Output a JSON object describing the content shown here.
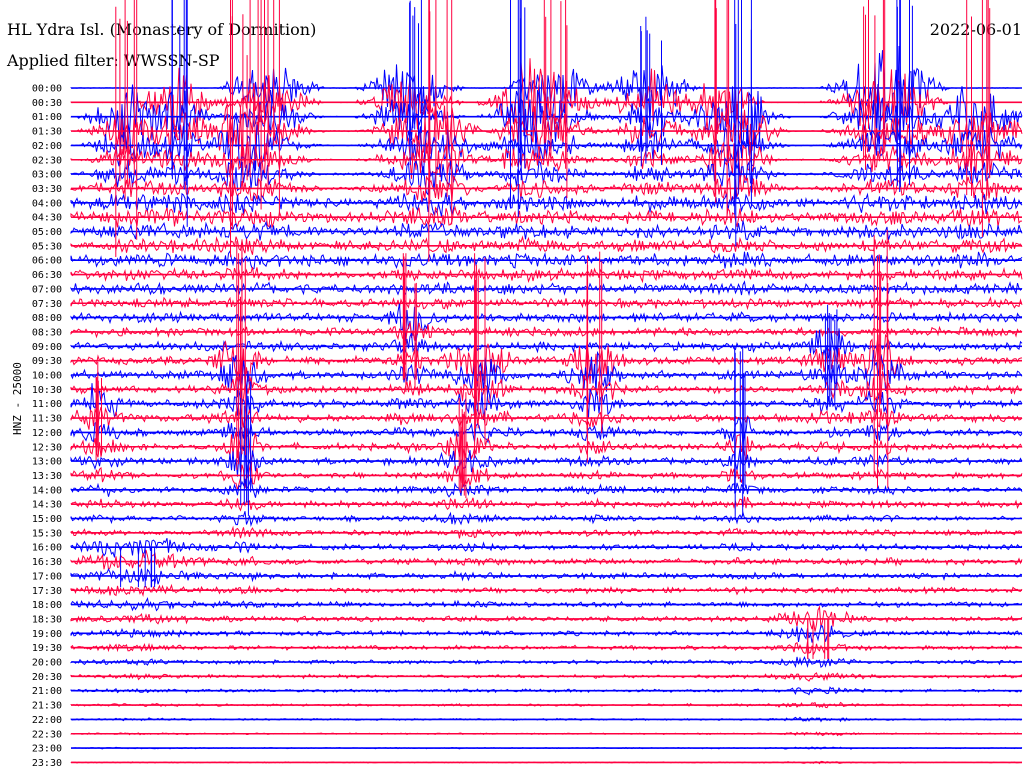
{
  "header": {
    "station": "HL Ydra Isl. (Monastery of Dormition)",
    "filter": "Applied filter: WWSSN-SP",
    "date": "2022-06-01"
  },
  "chart_data": {
    "type": "line",
    "ylabel": "HNZ - 25000",
    "row_times": [
      "00:00",
      "00:30",
      "01:00",
      "01:30",
      "02:00",
      "02:30",
      "03:00",
      "03:30",
      "04:00",
      "04:30",
      "05:00",
      "05:30",
      "06:00",
      "06:30",
      "07:00",
      "07:30",
      "08:00",
      "08:30",
      "09:00",
      "09:30",
      "10:00",
      "10:30",
      "11:00",
      "11:30",
      "12:00",
      "12:30",
      "13:00",
      "13:30",
      "14:00",
      "14:30",
      "15:00",
      "15:30",
      "16:00",
      "16:30",
      "17:00",
      "17:30",
      "18:00",
      "18:30",
      "19:00",
      "19:30",
      "20:00",
      "20:30",
      "21:00",
      "21:30",
      "22:00",
      "22:30",
      "23:00",
      "23:30"
    ],
    "series_colors": [
      "#0000ff",
      "#ff0040"
    ],
    "noise_level": [
      0.3,
      0.3,
      0.3,
      0.4,
      0.5,
      0.6,
      1.0,
      2.0,
      3.5,
      4.0,
      4.0,
      4.0,
      4.5,
      4.0,
      4.0,
      3.5,
      3.5,
      3.5,
      3.5,
      3.5,
      3.5,
      3.2,
      3.2,
      3.2,
      3.0,
      2.8,
      2.8,
      2.5,
      2.5,
      2.5,
      2.3,
      2.3,
      2.3,
      2.5,
      2.5,
      2.3,
      2.2,
      2.2,
      2.0,
      1.8,
      1.6,
      1.5,
      1.3,
      1.0,
      0.8,
      0.6,
      0.5,
      0.4
    ],
    "events": [
      {
        "x": 127,
        "row": 2,
        "rise": 190,
        "amp": 26,
        "col": "#ff0040",
        "w": 20
      },
      {
        "x": 178,
        "row": 1,
        "rise": 150,
        "amp": 30,
        "col": "#0000ff",
        "w": 18
      },
      {
        "x": 240,
        "row": 3,
        "rise": 150,
        "amp": 26,
        "col": "#ff0040",
        "w": 18
      },
      {
        "x": 270,
        "row": 0,
        "rise": 160,
        "amp": 28,
        "col": "#ff0040",
        "w": 22
      },
      {
        "x": 410,
        "row": 0,
        "rise": 90,
        "amp": 30,
        "col": "#0000ff",
        "w": 22
      },
      {
        "x": 440,
        "row": 3,
        "rise": 180,
        "amp": 26,
        "col": "#ff0040",
        "w": 20
      },
      {
        "x": 520,
        "row": 1,
        "rise": 160,
        "amp": 26,
        "col": "#0000ff",
        "w": 18
      },
      {
        "x": 555,
        "row": 0,
        "rise": 120,
        "amp": 28,
        "col": "#ff0040",
        "w": 22
      },
      {
        "x": 650,
        "row": 0,
        "rise": 90,
        "amp": 30,
        "col": "#0000ff",
        "w": 20
      },
      {
        "x": 720,
        "row": 1,
        "rise": 170,
        "amp": 26,
        "col": "#ff0040",
        "w": 18
      },
      {
        "x": 745,
        "row": 2,
        "rise": 150,
        "amp": 26,
        "col": "#0000ff",
        "w": 18
      },
      {
        "x": 875,
        "row": 0,
        "rise": 110,
        "amp": 32,
        "col": "#ff0040",
        "w": 22
      },
      {
        "x": 905,
        "row": 0,
        "rise": 140,
        "amp": 26,
        "col": "#0000ff",
        "w": 18
      },
      {
        "x": 980,
        "row": 2,
        "rise": 170,
        "amp": 30,
        "col": "#ff0040",
        "w": 24
      },
      {
        "x": 100,
        "row": 22,
        "rise": 40,
        "amp": 14,
        "col": "#ff0040",
        "w": 14
      },
      {
        "x": 240,
        "row": 19,
        "rise": 120,
        "amp": 22,
        "col": "#ff0040",
        "w": 14
      },
      {
        "x": 245,
        "row": 25,
        "rise": 60,
        "amp": 14,
        "col": "#0000ff",
        "w": 10
      },
      {
        "x": 410,
        "row": 16,
        "rise": 60,
        "amp": 16,
        "col": "#ff0040",
        "w": 12
      },
      {
        "x": 480,
        "row": 19,
        "rise": 110,
        "amp": 22,
        "col": "#ff0040",
        "w": 16
      },
      {
        "x": 460,
        "row": 25,
        "rise": 50,
        "amp": 12,
        "col": "#ff0040",
        "w": 12
      },
      {
        "x": 595,
        "row": 19,
        "rise": 110,
        "amp": 22,
        "col": "#ff0040",
        "w": 14
      },
      {
        "x": 830,
        "row": 18,
        "rise": 40,
        "amp": 14,
        "col": "#0000ff",
        "w": 14
      },
      {
        "x": 880,
        "row": 19,
        "rise": 150,
        "amp": 22,
        "col": "#ff0040",
        "w": 14
      },
      {
        "x": 740,
        "row": 24,
        "rise": 80,
        "amp": 14,
        "col": "#0000ff",
        "w": 10
      },
      {
        "x": 140,
        "row": 32,
        "rise": 0,
        "amp": 8,
        "col": "#0000ff",
        "w": 34
      },
      {
        "x": 815,
        "row": 37,
        "rise": 0,
        "amp": 8,
        "col": "#ff0040",
        "w": 24
      }
    ]
  }
}
